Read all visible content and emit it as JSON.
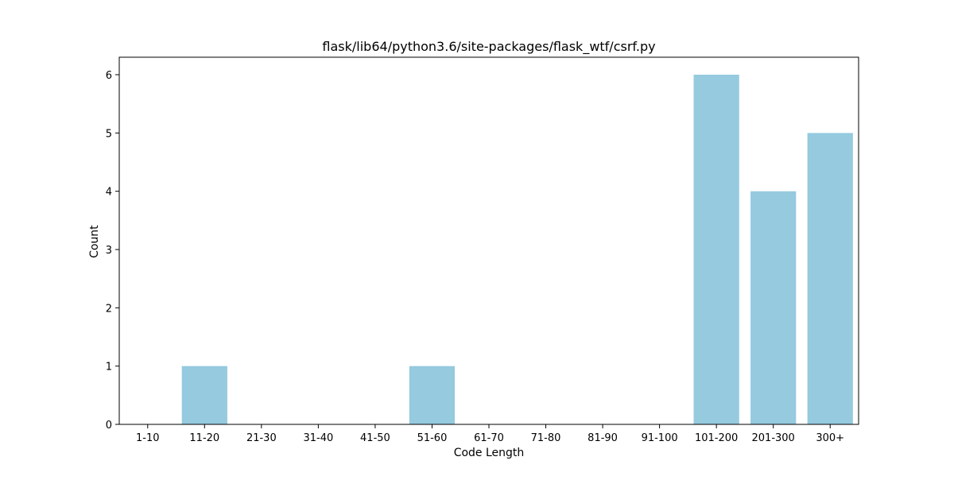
{
  "chart_data": {
    "type": "bar",
    "title": "flask/lib64/python3.6/site-packages/flask_wtf/csrf.py",
    "xlabel": "Code Length",
    "ylabel": "Count",
    "categories": [
      "1-10",
      "11-20",
      "21-30",
      "31-40",
      "41-50",
      "51-60",
      "61-70",
      "71-80",
      "81-90",
      "91-100",
      "101-200",
      "201-300",
      "300+"
    ],
    "values": [
      0,
      1,
      0,
      0,
      0,
      1,
      0,
      0,
      0,
      0,
      6,
      4,
      5
    ],
    "yticks": [
      0,
      1,
      2,
      3,
      4,
      5,
      6
    ],
    "ylim": [
      0,
      6.3
    ],
    "bar_color": "#95cadf",
    "grid": false,
    "legend": "none"
  }
}
